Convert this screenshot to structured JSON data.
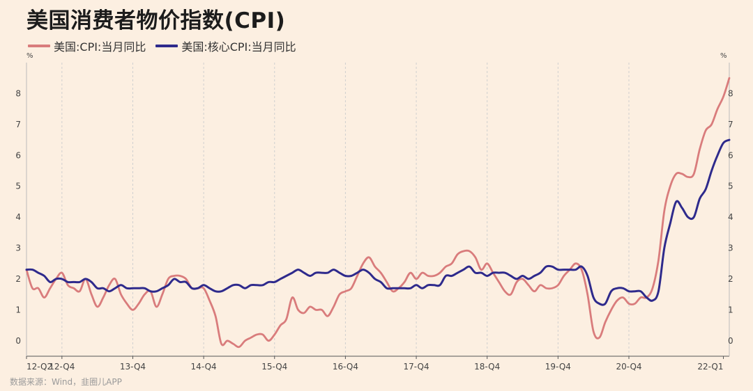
{
  "title": "美国消费者物价指数(CPI)",
  "source": "数据来源：Wind，韭圈儿APP",
  "colors": {
    "cpi": "#d97c7c",
    "core": "#2e2a8c",
    "background": "#fcefe1",
    "grid": "#cfcfcf"
  },
  "chart_data": {
    "type": "line",
    "title": "美国消费者物价指数(CPI)",
    "y_unit_left": "%",
    "y_unit_right": "%",
    "ylim": [
      -0.5,
      9
    ],
    "yticks": [
      0,
      1,
      2,
      3,
      4,
      5,
      6,
      7,
      8
    ],
    "x_ticks": [
      "12-Q2",
      "12-Q4",
      "13-Q4",
      "14-Q4",
      "15-Q4",
      "16-Q4",
      "17-Q4",
      "18-Q4",
      "19-Q4",
      "20-Q4",
      "22-Q1"
    ],
    "x_tick_months": [
      "2012-04",
      "2012-10",
      "2013-10",
      "2014-10",
      "2015-10",
      "2016-10",
      "2017-10",
      "2018-10",
      "2019-10",
      "2020-10",
      "2022-02"
    ],
    "grid": "vertical dashed",
    "legend_position": "top-left",
    "series": [
      {
        "name": "美国:CPI:当月同比",
        "color": "#d97c7c",
        "points": [
          [
            "2012-04",
            2.3
          ],
          [
            "2012-05",
            1.7
          ],
          [
            "2012-06",
            1.7
          ],
          [
            "2012-07",
            1.4
          ],
          [
            "2012-08",
            1.7
          ],
          [
            "2012-09",
            2.0
          ],
          [
            "2012-10",
            2.2
          ],
          [
            "2012-11",
            1.8
          ],
          [
            "2012-12",
            1.7
          ],
          [
            "2013-01",
            1.6
          ],
          [
            "2013-02",
            2.0
          ],
          [
            "2013-03",
            1.5
          ],
          [
            "2013-04",
            1.1
          ],
          [
            "2013-05",
            1.4
          ],
          [
            "2013-06",
            1.8
          ],
          [
            "2013-07",
            2.0
          ],
          [
            "2013-08",
            1.5
          ],
          [
            "2013-09",
            1.2
          ],
          [
            "2013-10",
            1.0
          ],
          [
            "2013-11",
            1.2
          ],
          [
            "2013-12",
            1.5
          ],
          [
            "2014-01",
            1.6
          ],
          [
            "2014-02",
            1.1
          ],
          [
            "2014-03",
            1.5
          ],
          [
            "2014-04",
            2.0
          ],
          [
            "2014-05",
            2.1
          ],
          [
            "2014-06",
            2.1
          ],
          [
            "2014-07",
            2.0
          ],
          [
            "2014-08",
            1.7
          ],
          [
            "2014-09",
            1.7
          ],
          [
            "2014-10",
            1.7
          ],
          [
            "2014-11",
            1.3
          ],
          [
            "2014-12",
            0.8
          ],
          [
            "2015-01",
            -0.1
          ],
          [
            "2015-02",
            0.0
          ],
          [
            "2015-03",
            -0.1
          ],
          [
            "2015-04",
            -0.2
          ],
          [
            "2015-05",
            0.0
          ],
          [
            "2015-06",
            0.1
          ],
          [
            "2015-07",
            0.2
          ],
          [
            "2015-08",
            0.2
          ],
          [
            "2015-09",
            0.0
          ],
          [
            "2015-10",
            0.2
          ],
          [
            "2015-11",
            0.5
          ],
          [
            "2015-12",
            0.7
          ],
          [
            "2016-01",
            1.4
          ],
          [
            "2016-02",
            1.0
          ],
          [
            "2016-03",
            0.9
          ],
          [
            "2016-04",
            1.1
          ],
          [
            "2016-05",
            1.0
          ],
          [
            "2016-06",
            1.0
          ],
          [
            "2016-07",
            0.8
          ],
          [
            "2016-08",
            1.1
          ],
          [
            "2016-09",
            1.5
          ],
          [
            "2016-10",
            1.6
          ],
          [
            "2016-11",
            1.7
          ],
          [
            "2016-12",
            2.1
          ],
          [
            "2017-01",
            2.5
          ],
          [
            "2017-02",
            2.7
          ],
          [
            "2017-03",
            2.4
          ],
          [
            "2017-04",
            2.2
          ],
          [
            "2017-05",
            1.9
          ],
          [
            "2017-06",
            1.6
          ],
          [
            "2017-07",
            1.7
          ],
          [
            "2017-08",
            1.9
          ],
          [
            "2017-09",
            2.2
          ],
          [
            "2017-10",
            2.0
          ],
          [
            "2017-11",
            2.2
          ],
          [
            "2017-12",
            2.1
          ],
          [
            "2018-01",
            2.1
          ],
          [
            "2018-02",
            2.2
          ],
          [
            "2018-03",
            2.4
          ],
          [
            "2018-04",
            2.5
          ],
          [
            "2018-05",
            2.8
          ],
          [
            "2018-06",
            2.9
          ],
          [
            "2018-07",
            2.9
          ],
          [
            "2018-08",
            2.7
          ],
          [
            "2018-09",
            2.3
          ],
          [
            "2018-10",
            2.5
          ],
          [
            "2018-11",
            2.2
          ],
          [
            "2018-12",
            1.9
          ],
          [
            "2019-01",
            1.6
          ],
          [
            "2019-02",
            1.5
          ],
          [
            "2019-03",
            1.9
          ],
          [
            "2019-04",
            2.0
          ],
          [
            "2019-05",
            1.8
          ],
          [
            "2019-06",
            1.6
          ],
          [
            "2019-07",
            1.8
          ],
          [
            "2019-08",
            1.7
          ],
          [
            "2019-09",
            1.7
          ],
          [
            "2019-10",
            1.8
          ],
          [
            "2019-11",
            2.1
          ],
          [
            "2019-12",
            2.3
          ],
          [
            "2020-01",
            2.5
          ],
          [
            "2020-02",
            2.3
          ],
          [
            "2020-03",
            1.5
          ],
          [
            "2020-04",
            0.3
          ],
          [
            "2020-05",
            0.1
          ],
          [
            "2020-06",
            0.6
          ],
          [
            "2020-07",
            1.0
          ],
          [
            "2020-08",
            1.3
          ],
          [
            "2020-09",
            1.4
          ],
          [
            "2020-10",
            1.2
          ],
          [
            "2020-11",
            1.2
          ],
          [
            "2020-12",
            1.4
          ],
          [
            "2021-01",
            1.4
          ],
          [
            "2021-02",
            1.7
          ],
          [
            "2021-03",
            2.6
          ],
          [
            "2021-04",
            4.2
          ],
          [
            "2021-05",
            5.0
          ],
          [
            "2021-06",
            5.4
          ],
          [
            "2021-07",
            5.4
          ],
          [
            "2021-08",
            5.3
          ],
          [
            "2021-09",
            5.4
          ],
          [
            "2021-10",
            6.2
          ],
          [
            "2021-11",
            6.8
          ],
          [
            "2021-12",
            7.0
          ],
          [
            "2022-01",
            7.5
          ],
          [
            "2022-02",
            7.9
          ],
          [
            "2022-03",
            8.5
          ]
        ]
      },
      {
        "name": "美国:核心CPI:当月同比",
        "color": "#2e2a8c",
        "points": [
          [
            "2012-04",
            2.3
          ],
          [
            "2012-05",
            2.3
          ],
          [
            "2012-06",
            2.2
          ],
          [
            "2012-07",
            2.1
          ],
          [
            "2012-08",
            1.9
          ],
          [
            "2012-09",
            2.0
          ],
          [
            "2012-10",
            2.0
          ],
          [
            "2012-11",
            1.9
          ],
          [
            "2012-12",
            1.9
          ],
          [
            "2013-01",
            1.9
          ],
          [
            "2013-02",
            2.0
          ],
          [
            "2013-03",
            1.9
          ],
          [
            "2013-04",
            1.7
          ],
          [
            "2013-05",
            1.7
          ],
          [
            "2013-06",
            1.6
          ],
          [
            "2013-07",
            1.7
          ],
          [
            "2013-08",
            1.8
          ],
          [
            "2013-09",
            1.7
          ],
          [
            "2013-10",
            1.7
          ],
          [
            "2013-11",
            1.7
          ],
          [
            "2013-12",
            1.7
          ],
          [
            "2014-01",
            1.6
          ],
          [
            "2014-02",
            1.6
          ],
          [
            "2014-03",
            1.7
          ],
          [
            "2014-04",
            1.8
          ],
          [
            "2014-05",
            2.0
          ],
          [
            "2014-06",
            1.9
          ],
          [
            "2014-07",
            1.9
          ],
          [
            "2014-08",
            1.7
          ],
          [
            "2014-09",
            1.7
          ],
          [
            "2014-10",
            1.8
          ],
          [
            "2014-11",
            1.7
          ],
          [
            "2014-12",
            1.6
          ],
          [
            "2015-01",
            1.6
          ],
          [
            "2015-02",
            1.7
          ],
          [
            "2015-03",
            1.8
          ],
          [
            "2015-04",
            1.8
          ],
          [
            "2015-05",
            1.7
          ],
          [
            "2015-06",
            1.8
          ],
          [
            "2015-07",
            1.8
          ],
          [
            "2015-08",
            1.8
          ],
          [
            "2015-09",
            1.9
          ],
          [
            "2015-10",
            1.9
          ],
          [
            "2015-11",
            2.0
          ],
          [
            "2015-12",
            2.1
          ],
          [
            "2016-01",
            2.2
          ],
          [
            "2016-02",
            2.3
          ],
          [
            "2016-03",
            2.2
          ],
          [
            "2016-04",
            2.1
          ],
          [
            "2016-05",
            2.2
          ],
          [
            "2016-06",
            2.2
          ],
          [
            "2016-07",
            2.2
          ],
          [
            "2016-08",
            2.3
          ],
          [
            "2016-09",
            2.2
          ],
          [
            "2016-10",
            2.1
          ],
          [
            "2016-11",
            2.1
          ],
          [
            "2016-12",
            2.2
          ],
          [
            "2017-01",
            2.3
          ],
          [
            "2017-02",
            2.2
          ],
          [
            "2017-03",
            2.0
          ],
          [
            "2017-04",
            1.9
          ],
          [
            "2017-05",
            1.7
          ],
          [
            "2017-06",
            1.7
          ],
          [
            "2017-07",
            1.7
          ],
          [
            "2017-08",
            1.7
          ],
          [
            "2017-09",
            1.7
          ],
          [
            "2017-10",
            1.8
          ],
          [
            "2017-11",
            1.7
          ],
          [
            "2017-12",
            1.8
          ],
          [
            "2018-01",
            1.8
          ],
          [
            "2018-02",
            1.8
          ],
          [
            "2018-03",
            2.1
          ],
          [
            "2018-04",
            2.1
          ],
          [
            "2018-05",
            2.2
          ],
          [
            "2018-06",
            2.3
          ],
          [
            "2018-07",
            2.4
          ],
          [
            "2018-08",
            2.2
          ],
          [
            "2018-09",
            2.2
          ],
          [
            "2018-10",
            2.1
          ],
          [
            "2018-11",
            2.2
          ],
          [
            "2018-12",
            2.2
          ],
          [
            "2019-01",
            2.2
          ],
          [
            "2019-02",
            2.1
          ],
          [
            "2019-03",
            2.0
          ],
          [
            "2019-04",
            2.1
          ],
          [
            "2019-05",
            2.0
          ],
          [
            "2019-06",
            2.1
          ],
          [
            "2019-07",
            2.2
          ],
          [
            "2019-08",
            2.4
          ],
          [
            "2019-09",
            2.4
          ],
          [
            "2019-10",
            2.3
          ],
          [
            "2019-11",
            2.3
          ],
          [
            "2019-12",
            2.3
          ],
          [
            "2020-01",
            2.3
          ],
          [
            "2020-02",
            2.4
          ],
          [
            "2020-03",
            2.1
          ],
          [
            "2020-04",
            1.4
          ],
          [
            "2020-05",
            1.2
          ],
          [
            "2020-06",
            1.2
          ],
          [
            "2020-07",
            1.6
          ],
          [
            "2020-08",
            1.7
          ],
          [
            "2020-09",
            1.7
          ],
          [
            "2020-10",
            1.6
          ],
          [
            "2020-11",
            1.6
          ],
          [
            "2020-12",
            1.6
          ],
          [
            "2021-01",
            1.4
          ],
          [
            "2021-02",
            1.3
          ],
          [
            "2021-03",
            1.6
          ],
          [
            "2021-04",
            3.0
          ],
          [
            "2021-05",
            3.8
          ],
          [
            "2021-06",
            4.5
          ],
          [
            "2021-07",
            4.3
          ],
          [
            "2021-08",
            4.0
          ],
          [
            "2021-09",
            4.0
          ],
          [
            "2021-10",
            4.6
          ],
          [
            "2021-11",
            4.9
          ],
          [
            "2021-12",
            5.5
          ],
          [
            "2022-01",
            6.0
          ],
          [
            "2022-02",
            6.4
          ],
          [
            "2022-03",
            6.5
          ]
        ]
      }
    ]
  }
}
